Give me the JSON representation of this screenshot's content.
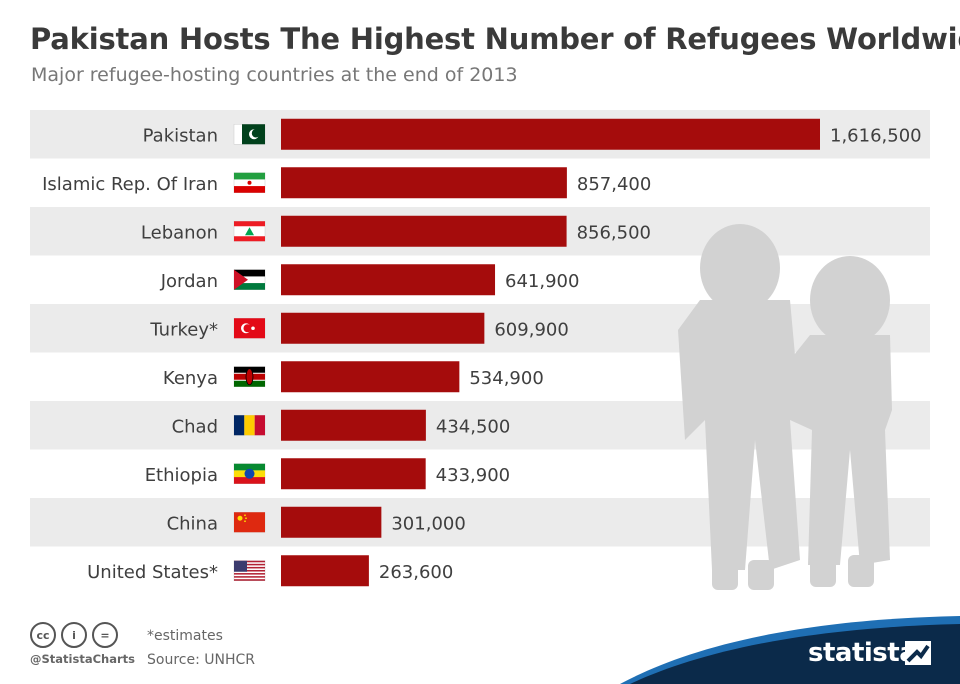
{
  "header": {
    "title": "Pakistan Hosts The Highest Number of Refugees Worldwide",
    "subtitle": "Major refugee-hosting countries at the end of 2013"
  },
  "chart_data": {
    "type": "bar",
    "orientation": "horizontal",
    "categories": [
      "Pakistan",
      "Islamic Rep. Of Iran",
      "Lebanon",
      "Jordan",
      "Turkey*",
      "Kenya",
      "Chad",
      "Ethiopia",
      "China",
      "United States*"
    ],
    "values": [
      1616500,
      857400,
      856500,
      641900,
      609900,
      534900,
      434500,
      433900,
      301000,
      263600
    ],
    "value_labels": [
      "1,616,500",
      "857,400",
      "856,500",
      "641,900",
      "609,900",
      "534,900",
      "434,500",
      "433,900",
      "301,000",
      "263,600"
    ],
    "flags": [
      "pakistan-flag",
      "iran-flag",
      "lebanon-flag",
      "jordan-flag",
      "turkey-flag",
      "kenya-flag",
      "chad-flag",
      "ethiopia-flag",
      "china-flag",
      "usa-flag"
    ],
    "title": "Pakistan Hosts The Highest Number of Refugees Worldwide",
    "xlim": [
      0,
      1616500
    ],
    "grid": false,
    "legend": "none",
    "colors": {
      "bar": "#a50c0c",
      "band": "#ebebeb",
      "silhouette": "#d2d2d2"
    }
  },
  "footer": {
    "cc_icons": [
      "cc",
      "i",
      "="
    ],
    "handle": "@StatistaCharts",
    "note": "*estimates",
    "source": "Source: UNHCR",
    "brand": "statista",
    "brand_color": "#0b2a4a",
    "accent_color": "#1f6fb4"
  }
}
